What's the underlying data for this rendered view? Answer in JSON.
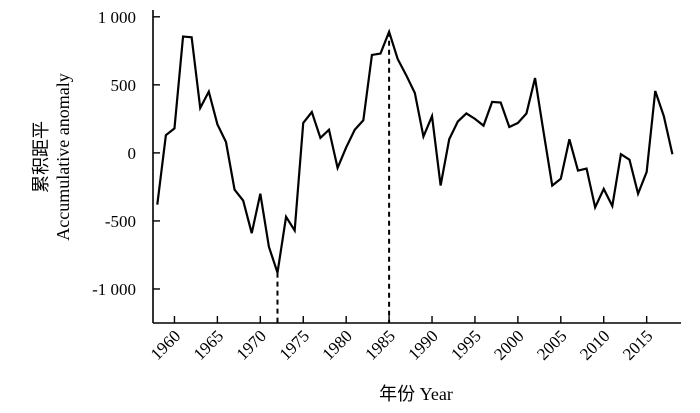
{
  "chart_data": {
    "type": "line",
    "xlabel": "年份 Year",
    "ylabel_cn": "累积距平",
    "ylabel_en": "Accumulative anomaly",
    "xlim": [
      1957.5,
      2019
    ],
    "ylim": [
      -1250,
      1050
    ],
    "x_ticks": [
      1960,
      1965,
      1970,
      1975,
      1980,
      1985,
      1990,
      1995,
      2000,
      2005,
      2010,
      2015
    ],
    "y_ticks": [
      {
        "value": 1000,
        "label": "1 000"
      },
      {
        "value": 500,
        "label": "500"
      },
      {
        "value": 0,
        "label": "0"
      },
      {
        "value": -500,
        "label": "-500"
      },
      {
        "value": -1000,
        "label": "-1 000"
      }
    ],
    "reference_lines": [
      1972,
      1985
    ],
    "series": [
      {
        "color": "#000000",
        "x": [
          1958,
          1959,
          1960,
          1961,
          1962,
          1963,
          1964,
          1965,
          1966,
          1967,
          1968,
          1969,
          1970,
          1971,
          1972,
          1973,
          1974,
          1975,
          1976,
          1977,
          1978,
          1979,
          1980,
          1981,
          1982,
          1983,
          1984,
          1985,
          1986,
          1987,
          1988,
          1989,
          1990,
          1991,
          1992,
          1993,
          1994,
          1995,
          1996,
          1997,
          1998,
          1999,
          2000,
          2001,
          2002,
          2003,
          2004,
          2005,
          2006,
          2007,
          2008,
          2009,
          2010,
          2011,
          2012,
          2013,
          2014,
          2015,
          2016,
          2017,
          2018
        ],
        "y": [
          -380,
          130,
          180,
          855,
          850,
          330,
          450,
          210,
          80,
          -270,
          -350,
          -590,
          -300,
          -690,
          -880,
          -470,
          -570,
          220,
          300,
          110,
          170,
          -110,
          40,
          170,
          240,
          720,
          730,
          890,
          690,
          570,
          440,
          120,
          270,
          -240,
          100,
          230,
          290,
          250,
          200,
          375,
          370,
          190,
          220,
          290,
          550,
          150,
          -240,
          -190,
          100,
          -130,
          -115,
          -400,
          -265,
          -390,
          -10,
          -50,
          -300,
          -140,
          455,
          270,
          -10
        ]
      }
    ]
  }
}
